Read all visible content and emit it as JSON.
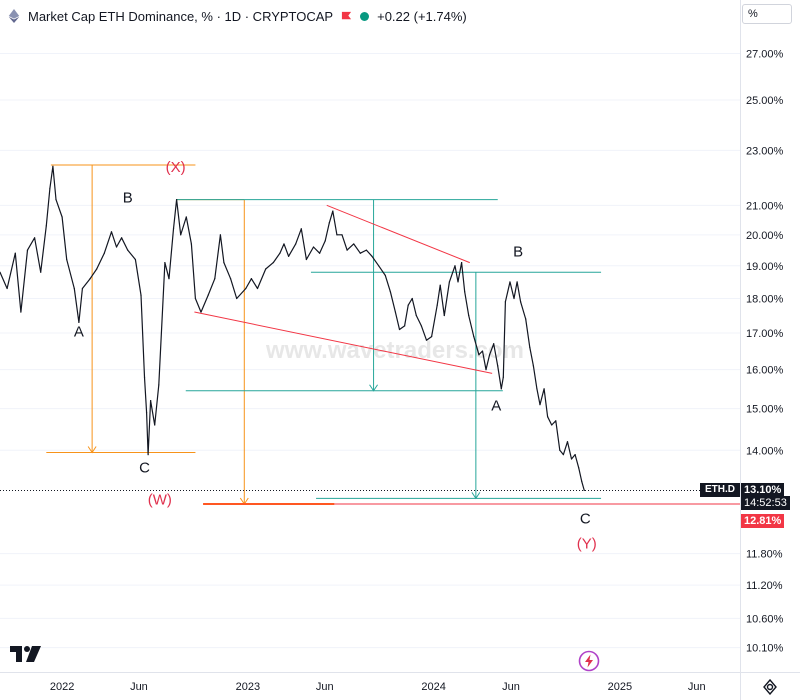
{
  "header": {
    "title": "Market Cap ETH Dominance, % · 1D · CRYPTOCAP",
    "change": "+0.22 (+1.74%)",
    "symbol_icon": "ethereum-diamond-icon",
    "flag_icon": "red-flag-icon",
    "status_icon": "green-dot-icon"
  },
  "axis_unit_label": "%",
  "watermark": "www.wavetraders.com",
  "price_labels": {
    "symbol": "ETH.D",
    "current": "13.10%",
    "countdown": "14:52:53",
    "line_level": "12.81%"
  },
  "colors": {
    "price": "#131722",
    "orange": "#f7931a",
    "teal": "#26a69a",
    "red": "#f23645",
    "wave_label_red": "#e0314e",
    "grid": "#f0f3fa"
  },
  "chart_data": {
    "type": "line",
    "y_scale": "log",
    "ylim": [
      9.7,
      29.5
    ],
    "x_range": [
      "2021-09-01",
      "2025-08-25"
    ],
    "y_ticks": [
      10.1,
      10.6,
      11.2,
      11.8,
      14.0,
      15.0,
      16.0,
      17.0,
      18.0,
      19.0,
      20.0,
      21.0,
      23.0,
      25.0,
      27.0
    ],
    "y_tick_labels": [
      "10.10%",
      "10.60%",
      "11.20%",
      "11.80%",
      "14.00%",
      "15.00%",
      "16.00%",
      "17.00%",
      "18.00%",
      "19.00%",
      "20.00%",
      "21.00%",
      "23.00%",
      "25.00%",
      "27.00%"
    ],
    "x_ticks": [
      {
        "label": "2022",
        "date": "2022-01-01"
      },
      {
        "label": "Jun",
        "date": "2022-06-01"
      },
      {
        "label": "2023",
        "date": "2023-01-01"
      },
      {
        "label": "Jun",
        "date": "2023-06-01"
      },
      {
        "label": "2024",
        "date": "2024-01-01"
      },
      {
        "label": "Jun",
        "date": "2024-06-01"
      },
      {
        "label": "2025",
        "date": "2025-01-01"
      },
      {
        "label": "Jun",
        "date": "2025-06-01"
      }
    ],
    "series": [
      {
        "values": [
          [
            "2021-09-01",
            18.8
          ],
          [
            "2021-09-15",
            18.3
          ],
          [
            "2021-10-01",
            19.4
          ],
          [
            "2021-10-12",
            17.6
          ],
          [
            "2021-10-25",
            19.5
          ],
          [
            "2021-11-08",
            19.9
          ],
          [
            "2021-11-20",
            18.8
          ],
          [
            "2021-12-01",
            20.3
          ],
          [
            "2021-12-08",
            21.6
          ],
          [
            "2021-12-14",
            22.4
          ],
          [
            "2021-12-20",
            21.2
          ],
          [
            "2022-01-01",
            20.6
          ],
          [
            "2022-01-10",
            19.2
          ],
          [
            "2022-01-25",
            18.3
          ],
          [
            "2022-02-03",
            17.3
          ],
          [
            "2022-02-10",
            18.3
          ],
          [
            "2022-02-25",
            18.6
          ],
          [
            "2022-03-10",
            18.9
          ],
          [
            "2022-03-25",
            19.4
          ],
          [
            "2022-04-08",
            20.1
          ],
          [
            "2022-04-18",
            19.6
          ],
          [
            "2022-04-28",
            19.9
          ],
          [
            "2022-05-10",
            19.5
          ],
          [
            "2022-05-25",
            19.2
          ],
          [
            "2022-06-05",
            18.1
          ],
          [
            "2022-06-12",
            15.8
          ],
          [
            "2022-06-16",
            14.9
          ],
          [
            "2022-06-19",
            13.9
          ],
          [
            "2022-06-24",
            15.2
          ],
          [
            "2022-07-02",
            14.6
          ],
          [
            "2022-07-10",
            15.6
          ],
          [
            "2022-07-22",
            19.1
          ],
          [
            "2022-07-30",
            18.6
          ],
          [
            "2022-08-08",
            20.2
          ],
          [
            "2022-08-14",
            21.2
          ],
          [
            "2022-08-22",
            20.0
          ],
          [
            "2022-09-02",
            20.6
          ],
          [
            "2022-09-12",
            19.7
          ],
          [
            "2022-09-20",
            18.0
          ],
          [
            "2022-10-01",
            17.6
          ],
          [
            "2022-10-15",
            18.1
          ],
          [
            "2022-10-28",
            18.6
          ],
          [
            "2022-11-08",
            20.0
          ],
          [
            "2022-11-15",
            19.1
          ],
          [
            "2022-11-28",
            18.6
          ],
          [
            "2022-12-10",
            18.0
          ],
          [
            "2022-12-28",
            18.3
          ],
          [
            "2023-01-08",
            18.6
          ],
          [
            "2023-01-20",
            18.3
          ],
          [
            "2023-02-05",
            18.9
          ],
          [
            "2023-02-20",
            19.1
          ],
          [
            "2023-03-05",
            19.4
          ],
          [
            "2023-03-13",
            19.7
          ],
          [
            "2023-03-22",
            19.3
          ],
          [
            "2023-04-05",
            19.7
          ],
          [
            "2023-04-16",
            20.2
          ],
          [
            "2023-04-26",
            19.2
          ],
          [
            "2023-05-10",
            19.6
          ],
          [
            "2023-05-22",
            19.4
          ],
          [
            "2023-06-02",
            19.8
          ],
          [
            "2023-06-10",
            20.4
          ],
          [
            "2023-06-17",
            20.8
          ],
          [
            "2023-06-25",
            20.0
          ],
          [
            "2023-07-05",
            20.0
          ],
          [
            "2023-07-15",
            19.5
          ],
          [
            "2023-07-28",
            19.7
          ],
          [
            "2023-08-10",
            19.4
          ],
          [
            "2023-08-22",
            19.5
          ],
          [
            "2023-09-02",
            19.3
          ],
          [
            "2023-09-15",
            19.0
          ],
          [
            "2023-09-28",
            18.7
          ],
          [
            "2023-10-08",
            18.2
          ],
          [
            "2023-10-18",
            17.6
          ],
          [
            "2023-10-26",
            17.1
          ],
          [
            "2023-11-05",
            17.2
          ],
          [
            "2023-11-12",
            17.8
          ],
          [
            "2023-11-20",
            18.0
          ],
          [
            "2023-11-28",
            17.5
          ],
          [
            "2023-12-08",
            17.2
          ],
          [
            "2023-12-18",
            16.8
          ],
          [
            "2023-12-28",
            16.9
          ],
          [
            "2024-01-08",
            17.8
          ],
          [
            "2024-01-14",
            18.4
          ],
          [
            "2024-01-22",
            17.5
          ],
          [
            "2024-02-01",
            18.5
          ],
          [
            "2024-02-12",
            19.0
          ],
          [
            "2024-02-18",
            18.5
          ],
          [
            "2024-02-25",
            19.1
          ],
          [
            "2024-03-02",
            18.2
          ],
          [
            "2024-03-10",
            17.5
          ],
          [
            "2024-03-20",
            16.9
          ],
          [
            "2024-03-30",
            16.4
          ],
          [
            "2024-04-06",
            16.5
          ],
          [
            "2024-04-13",
            16.0
          ],
          [
            "2024-04-20",
            16.4
          ],
          [
            "2024-04-28",
            16.7
          ],
          [
            "2024-05-06",
            16.1
          ],
          [
            "2024-05-13",
            15.5
          ],
          [
            "2024-05-17",
            15.8
          ],
          [
            "2024-05-21",
            17.9
          ],
          [
            "2024-05-30",
            18.5
          ],
          [
            "2024-06-07",
            18.0
          ],
          [
            "2024-06-13",
            18.5
          ],
          [
            "2024-06-20",
            17.9
          ],
          [
            "2024-06-30",
            17.4
          ],
          [
            "2024-07-08",
            16.6
          ],
          [
            "2024-07-15",
            16.1
          ],
          [
            "2024-07-22",
            15.5
          ],
          [
            "2024-07-28",
            15.1
          ],
          [
            "2024-08-05",
            15.5
          ],
          [
            "2024-08-12",
            14.8
          ],
          [
            "2024-08-20",
            14.6
          ],
          [
            "2024-08-28",
            14.7
          ],
          [
            "2024-09-05",
            14.0
          ],
          [
            "2024-09-12",
            13.9
          ],
          [
            "2024-09-20",
            14.2
          ],
          [
            "2024-09-28",
            13.8
          ],
          [
            "2024-10-05",
            13.9
          ],
          [
            "2024-10-12",
            13.6
          ],
          [
            "2024-10-18",
            13.3
          ],
          [
            "2024-10-23",
            13.1
          ]
        ]
      }
    ]
  },
  "drawings": {
    "orange_lines": [
      {
        "kind": "h",
        "from": "2021-12-10",
        "to": "2022-09-20",
        "y": 22.45
      },
      {
        "kind": "h",
        "from": "2021-12-01",
        "to": "2022-09-20",
        "y": 13.95
      },
      {
        "kind": "v",
        "x": "2022-03-01",
        "from": 22.45,
        "to": 13.95
      },
      {
        "kind": "h",
        "from": "2022-08-14",
        "to": "2022-12-25",
        "y": 21.2
      },
      {
        "kind": "v",
        "x": "2022-12-25",
        "from": 21.2,
        "to": 12.81
      }
    ],
    "teal_lines": [
      {
        "kind": "h",
        "from": "2022-08-14",
        "to": "2024-05-06",
        "y": 21.2
      },
      {
        "kind": "h",
        "from": "2023-05-05",
        "to": "2024-11-25",
        "y": 18.8
      },
      {
        "kind": "h",
        "from": "2022-09-01",
        "to": "2024-05-16",
        "y": 15.45
      },
      {
        "kind": "h",
        "from": "2023-05-15",
        "to": "2024-11-25",
        "y": 12.93
      },
      {
        "kind": "v",
        "x": "2023-09-05",
        "from": 21.2,
        "to": 15.45
      },
      {
        "kind": "v",
        "x": "2024-03-24",
        "from": 18.8,
        "to": 12.93
      }
    ],
    "red_lines": [
      {
        "from": [
          "2023-06-05",
          21.0
        ],
        "to": [
          "2024-03-12",
          19.1
        ]
      },
      {
        "from": [
          "2022-09-18",
          17.6
        ],
        "to": [
          "2024-04-25",
          15.9
        ]
      }
    ],
    "level_lines": [
      {
        "from": "2022-10-05",
        "to": "2023-06-20",
        "y": 12.81,
        "color": "orange",
        "width": 2
      },
      {
        "from": "2023-06-20",
        "to": "2025-08-25",
        "y": 12.81,
        "color": "red",
        "width": 1
      }
    ],
    "current_price": 13.1
  },
  "wave_labels": [
    {
      "text": "A",
      "date": "2022-02-03",
      "y": 16.9,
      "color": "black"
    },
    {
      "text": "B",
      "date": "2022-05-10",
      "y": 21.1,
      "color": "black"
    },
    {
      "text": "C",
      "date": "2022-06-12",
      "y": 13.5,
      "color": "black"
    },
    {
      "text": "(X)",
      "date": "2022-08-12",
      "y": 22.2,
      "color": "red"
    },
    {
      "text": "(W)",
      "date": "2022-07-12",
      "y": 12.8,
      "color": "red"
    },
    {
      "text": "B",
      "date": "2024-06-15",
      "y": 19.3,
      "color": "black"
    },
    {
      "text": "A",
      "date": "2024-05-03",
      "y": 14.95,
      "color": "black"
    },
    {
      "text": "C",
      "date": "2024-10-25",
      "y": 12.4,
      "color": "black"
    },
    {
      "text": "(Y)",
      "date": "2024-10-28",
      "y": 11.9,
      "color": "red"
    }
  ]
}
